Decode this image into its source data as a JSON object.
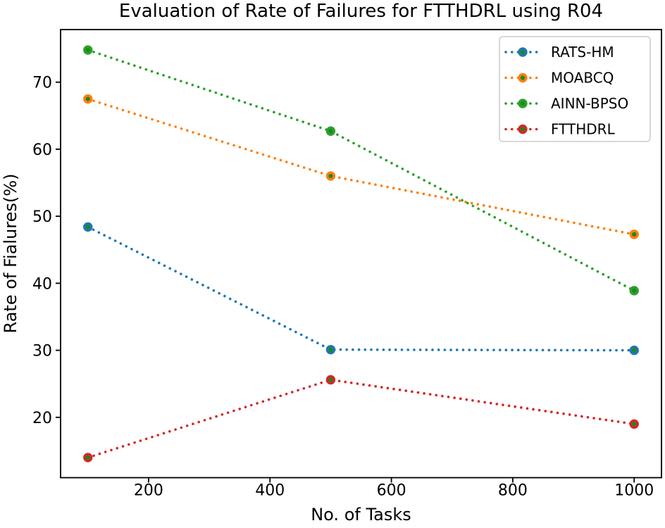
{
  "figure": {
    "background": "#ffffff",
    "text_color": "#000000",
    "spine_color": "#000000"
  },
  "chart_data": {
    "type": "line",
    "title": "Evaluation of Rate of Failures for FTTHDRL using R04",
    "xlabel": "No. of Tasks",
    "ylabel": "Rate of Fialures(%)",
    "x": [
      100,
      500,
      1000
    ],
    "xticks": [
      200,
      400,
      600,
      800,
      1000
    ],
    "yticks": [
      20,
      30,
      40,
      50,
      60,
      70
    ],
    "xlim": [
      55,
      1045
    ],
    "ylim": [
      11,
      77.85
    ],
    "grid": false,
    "line_style": "dotted",
    "marker": "circle",
    "marker_face_color": "#1b8a1b",
    "legend_position": "upper right",
    "legend_border_color": "#cccccc",
    "series": [
      {
        "name": "RATS-HM",
        "color": "#1f77b4",
        "values": [
          48.4,
          30.1,
          30.0
        ]
      },
      {
        "name": "MOABCQ",
        "color": "#ff7f0e",
        "values": [
          67.5,
          56.0,
          47.3
        ]
      },
      {
        "name": "AINN-BPSO",
        "color": "#2ca02c",
        "values": [
          74.8,
          62.7,
          38.9
        ]
      },
      {
        "name": "FTTHDRL",
        "color": "#d62728",
        "values": [
          14.0,
          25.6,
          19.0
        ]
      }
    ]
  }
}
